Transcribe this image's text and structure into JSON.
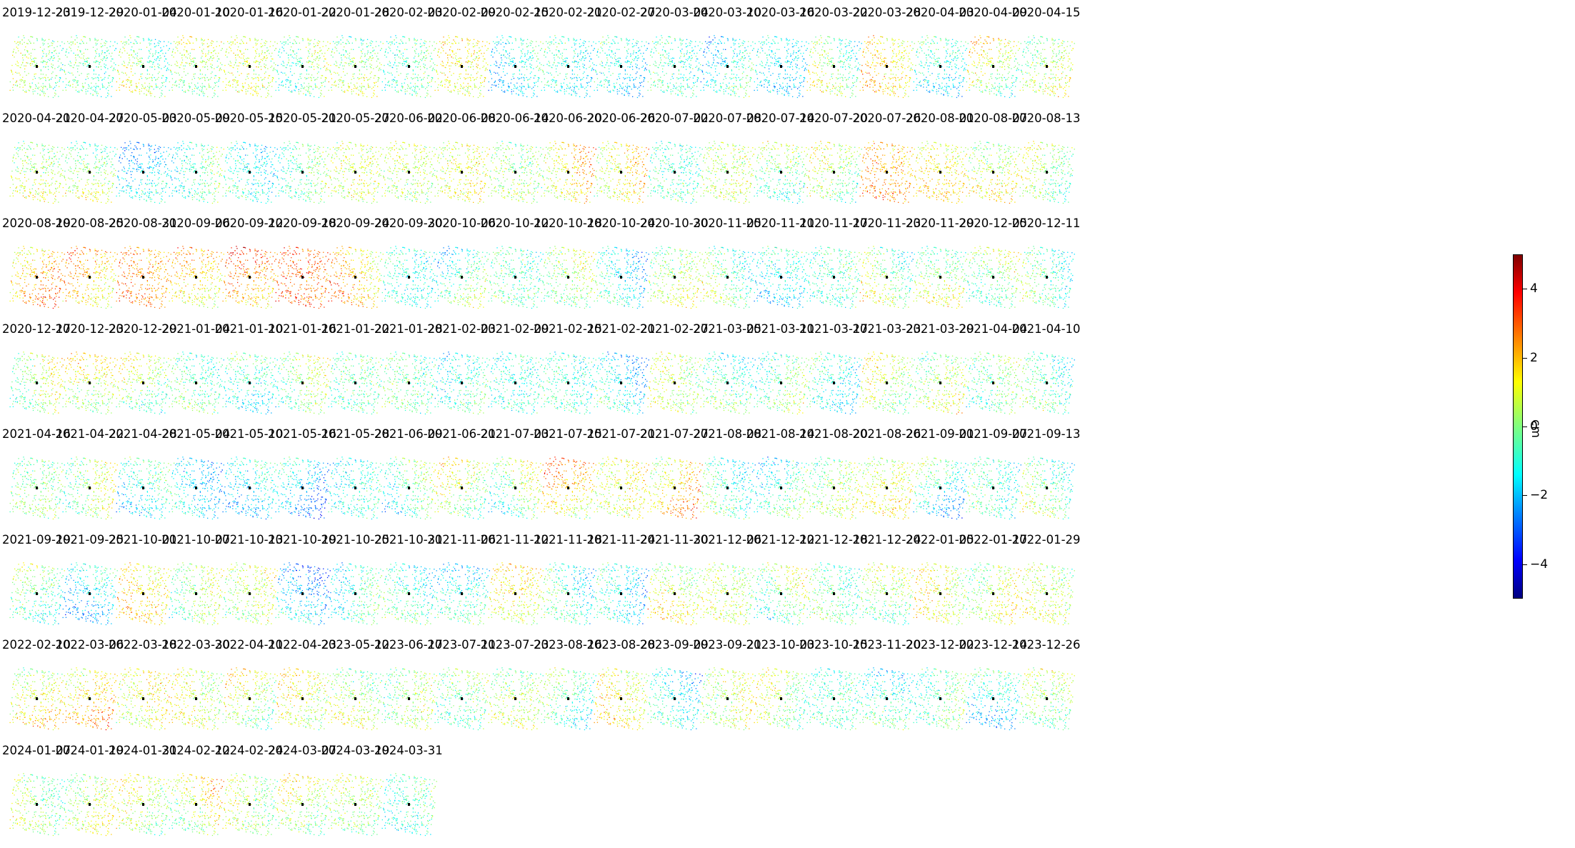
{
  "chart_data": {
    "type": "scatter",
    "title": "",
    "xlabel": "",
    "ylabel": "",
    "panel_layout": {
      "columns": 20,
      "rows": 8
    },
    "panels": [
      "2019-12-23",
      "2019-12-29",
      "2020-01-04",
      "2020-01-10",
      "2020-01-16",
      "2020-01-22",
      "2020-01-28",
      "2020-02-03",
      "2020-02-09",
      "2020-02-15",
      "2020-02-21",
      "2020-02-27",
      "2020-03-04",
      "2020-03-10",
      "2020-03-16",
      "2020-03-22",
      "2020-03-28",
      "2020-04-03",
      "2020-04-09",
      "2020-04-15",
      "2020-04-21",
      "2020-04-27",
      "2020-05-03",
      "2020-05-09",
      "2020-05-15",
      "2020-05-21",
      "2020-05-27",
      "2020-06-02",
      "2020-06-08",
      "2020-06-14",
      "2020-06-20",
      "2020-06-26",
      "2020-07-02",
      "2020-07-08",
      "2020-07-14",
      "2020-07-20",
      "2020-07-26",
      "2020-08-01",
      "2020-08-07",
      "2020-08-13",
      "2020-08-19",
      "2020-08-25",
      "2020-08-31",
      "2020-09-06",
      "2020-09-12",
      "2020-09-18",
      "2020-09-24",
      "2020-09-30",
      "2020-10-06",
      "2020-10-12",
      "2020-10-18",
      "2020-10-24",
      "2020-10-30",
      "2020-11-05",
      "2020-11-11",
      "2020-11-17",
      "2020-11-23",
      "2020-11-29",
      "2020-12-05",
      "2020-12-11",
      "2020-12-17",
      "2020-12-23",
      "2020-12-29",
      "2021-01-04",
      "2021-01-10",
      "2021-01-16",
      "2021-01-22",
      "2021-01-28",
      "2021-02-03",
      "2021-02-09",
      "2021-02-15",
      "2021-02-21",
      "2021-02-27",
      "2021-03-05",
      "2021-03-11",
      "2021-03-17",
      "2021-03-23",
      "2021-03-29",
      "2021-04-04",
      "2021-04-10",
      "2021-04-16",
      "2021-04-22",
      "2021-04-28",
      "2021-05-04",
      "2021-05-10",
      "2021-05-16",
      "2021-05-28",
      "2021-06-09",
      "2021-06-21",
      "2021-07-03",
      "2021-07-15",
      "2021-07-21",
      "2021-07-27",
      "2021-08-08",
      "2021-08-14",
      "2021-08-20",
      "2021-08-26",
      "2021-09-01",
      "2021-09-07",
      "2021-09-13",
      "2021-09-19",
      "2021-09-25",
      "2021-10-01",
      "2021-10-07",
      "2021-10-13",
      "2021-10-19",
      "2021-10-25",
      "2021-10-31",
      "2021-11-06",
      "2021-11-12",
      "2021-11-18",
      "2021-11-24",
      "2021-11-30",
      "2021-12-06",
      "2021-12-12",
      "2021-12-18",
      "2021-12-24",
      "2022-01-05",
      "2022-01-17",
      "2022-01-29",
      "2022-02-10",
      "2022-03-06",
      "2022-03-18",
      "2022-03-30",
      "2022-04-11",
      "2022-04-23",
      "2023-05-12",
      "2023-06-17",
      "2023-07-11",
      "2023-07-23",
      "2023-08-16",
      "2023-08-28",
      "2023-09-09",
      "2023-09-21",
      "2023-10-03",
      "2023-10-15",
      "2023-11-20",
      "2023-12-02",
      "2023-12-14",
      "2023-12-26",
      "2024-01-07",
      "2024-01-19",
      "2024-01-31",
      "2024-02-12",
      "2024-02-24",
      "2024-03-07",
      "2024-03-19",
      "2024-03-31"
    ],
    "panel_mean_cm": [
      0.2,
      -0.4,
      0.0,
      0.4,
      0.8,
      -0.2,
      0.3,
      -0.5,
      1.2,
      -1.3,
      -1.0,
      -1.2,
      -0.7,
      -1.1,
      -1.4,
      0.1,
      1.5,
      -1.0,
      0.6,
      0.4,
      0.5,
      0.2,
      -1.6,
      -0.6,
      -1.1,
      -0.3,
      0.8,
      0.6,
      1.0,
      0.2,
      1.4,
      1.2,
      -0.6,
      0.6,
      -0.2,
      0.4,
      2.2,
      1.4,
      0.8,
      0.2,
      2.0,
      1.8,
      2.4,
      1.6,
      2.4,
      2.8,
      1.8,
      -0.9,
      -0.5,
      -0.4,
      0.2,
      -1.2,
      0.4,
      -0.2,
      -1.2,
      -0.6,
      0.1,
      0.3,
      0.0,
      -0.4,
      0.4,
      0.8,
      0.3,
      -0.4,
      -0.8,
      0.2,
      -0.4,
      -0.3,
      -0.8,
      -0.9,
      -0.7,
      -1.3,
      0.5,
      -0.5,
      -0.2,
      -1.0,
      0.6,
      0.4,
      -0.2,
      -0.5,
      0.0,
      0.3,
      -0.9,
      -1.6,
      -1.4,
      -1.8,
      -1.0,
      -0.4,
      0.5,
      0.0,
      1.8,
      1.0,
      1.6,
      -0.6,
      -0.8,
      0.3,
      1.0,
      -1.0,
      -0.6,
      -0.2,
      -0.3,
      -1.5,
      1.5,
      0.2,
      0.6,
      -2.0,
      -0.8,
      -0.7,
      -1.0,
      1.2,
      -0.8,
      -1.2,
      0.8,
      0.6,
      0.0,
      -0.3,
      0.2,
      1.0,
      0.6,
      0.7,
      1.0,
      1.6,
      1.0,
      0.8,
      0.6,
      1.0,
      0.4,
      0.2,
      -0.2,
      0.4,
      -0.4,
      1.2,
      -1.2,
      0.6,
      0.4,
      -0.6,
      -0.8,
      -0.4,
      -1.2,
      0.2,
      0.2,
      0.6,
      0.6,
      0.8,
      0.4,
      0.6,
      0.4,
      -0.6
    ],
    "colormap": "jet",
    "colorbar": {
      "label": "cm",
      "range": [
        -5,
        5
      ],
      "ticks": [
        4,
        2,
        0,
        -2,
        -4
      ],
      "tick_labels": [
        "4",
        "2",
        "0",
        "−2",
        "−4"
      ]
    }
  }
}
